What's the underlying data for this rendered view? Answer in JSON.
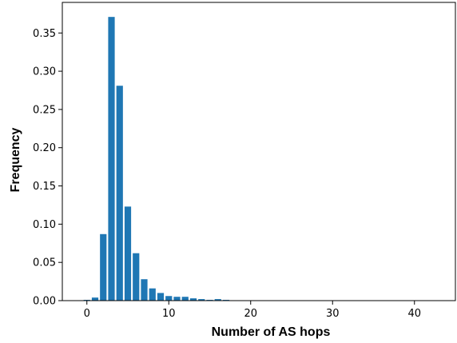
{
  "chart_data": {
    "type": "bar",
    "title": "",
    "xlabel": "Number of AS hops",
    "ylabel": "Frequency",
    "xlim": [
      -3,
      45
    ],
    "ylim": [
      0,
      0.39
    ],
    "xticks": [
      {
        "value": 0,
        "label": "0"
      },
      {
        "value": 10,
        "label": "10"
      },
      {
        "value": 20,
        "label": "20"
      },
      {
        "value": 30,
        "label": "30"
      },
      {
        "value": 40,
        "label": "40"
      }
    ],
    "yticks": [
      {
        "value": 0.0,
        "label": "0.00"
      },
      {
        "value": 0.05,
        "label": "0.05"
      },
      {
        "value": 0.1,
        "label": "0.10"
      },
      {
        "value": 0.15,
        "label": "0.15"
      },
      {
        "value": 0.2,
        "label": "0.20"
      },
      {
        "value": 0.25,
        "label": "0.25"
      },
      {
        "value": 0.3,
        "label": "0.30"
      },
      {
        "value": 0.35,
        "label": "0.35"
      }
    ],
    "grid": false,
    "bar_color": "#1f77b4",
    "x": [
      0,
      1,
      2,
      3,
      4,
      5,
      6,
      7,
      8,
      9,
      10,
      11,
      12,
      13,
      14,
      15,
      16,
      17
    ],
    "values": [
      0.001,
      0.004,
      0.087,
      0.371,
      0.281,
      0.123,
      0.062,
      0.028,
      0.016,
      0.01,
      0.006,
      0.005,
      0.005,
      0.003,
      0.002,
      0.001,
      0.002,
      0.001
    ]
  }
}
